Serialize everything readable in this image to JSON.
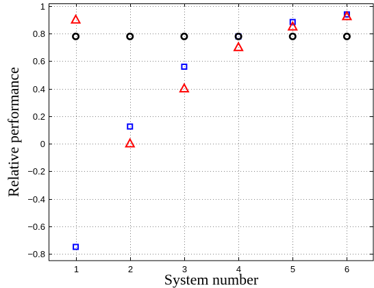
{
  "chart_data": {
    "type": "scatter",
    "title": "",
    "xlabel": "System number",
    "ylabel": "Relative performance",
    "xlim": [
      0.5,
      6.5
    ],
    "ylim": [
      -0.85,
      1.02
    ],
    "grid": true,
    "legend": "none",
    "xticks": [
      1,
      2,
      3,
      4,
      5,
      6
    ],
    "xtick_labels": [
      "1",
      "2",
      "3",
      "4",
      "5",
      "6"
    ],
    "yticks": [
      -0.8,
      -0.6,
      -0.4,
      -0.2,
      0,
      0.2,
      0.4,
      0.6,
      0.8,
      1
    ],
    "ytick_labels": [
      "−0.8",
      "−0.6",
      "−0.4",
      "−0.2",
      "0",
      "0.2",
      "0.4",
      "0.6",
      "0.8",
      "1"
    ],
    "series": [
      {
        "marker": "square",
        "color": "#0000ff",
        "x": [
          1,
          2,
          3,
          4,
          5,
          6
        ],
        "y": [
          -0.75,
          0.125,
          0.56,
          0.78,
          0.885,
          0.94
        ]
      },
      {
        "marker": "triangle",
        "color": "#ff0000",
        "x": [
          1,
          2,
          3,
          4,
          5,
          6
        ],
        "y": [
          0.9,
          0.0,
          0.4,
          0.7,
          0.85,
          0.925
        ]
      },
      {
        "marker": "circle",
        "color": "#000000",
        "x": [
          1,
          2,
          3,
          4,
          5,
          6
        ],
        "y": [
          0.78,
          0.78,
          0.78,
          0.78,
          0.78,
          0.78
        ]
      }
    ]
  }
}
